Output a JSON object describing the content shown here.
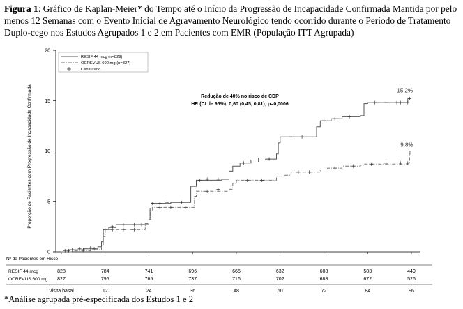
{
  "caption": {
    "label": "Figura 1",
    "text": ": Gráfico de Kaplan-Meier* do Tempo até o Início da Progressão de Incapacidade Confirmada Mantida por pelo menos 12 Semanas com o Evento Inicial de Agravamento Neurológico tendo ocorrido durante o Período de Tratamento Duplo-cego nos Estudos Agrupados 1 e 2 em Pacientes com EMR (População ITT Agrupada)"
  },
  "footnote": "*Análise agrupada pré-especificada dos Estudos 1 e 2",
  "chart_data": {
    "type": "line",
    "ylabel": "Proporção de Pacientes com Progressão de Incapacidade Confirmada",
    "ylim": [
      0,
      20
    ],
    "yticks": [
      "0",
      "5",
      "10",
      "15",
      "20"
    ],
    "xlim": [
      0,
      96
    ],
    "xticks": [
      {
        "value": 0,
        "label": "Visita basal"
      },
      {
        "value": 12,
        "label": "12"
      },
      {
        "value": 24,
        "label": "24"
      },
      {
        "value": 36,
        "label": "36"
      },
      {
        "value": 48,
        "label": "48"
      },
      {
        "value": 60,
        "label": "60"
      },
      {
        "value": 72,
        "label": "72"
      },
      {
        "value": 84,
        "label": "84"
      },
      {
        "value": 96,
        "label": "96"
      }
    ],
    "legend": {
      "placement": "top-left",
      "censored_label": "Censurado"
    },
    "annotation": {
      "line1": "Redução de 40% no risco de CDP",
      "line2": "HR (CI de 95%): 0,60 (0,45, 0,81); p=0,0006"
    },
    "series": [
      {
        "name": "RESIF 44 mcg (n=829)",
        "color": "#555555",
        "style": "solid",
        "end_label": "15.2%",
        "end_value": 15.2,
        "points": [
          [
            0,
            0
          ],
          [
            2,
            0.2
          ],
          [
            6,
            0.3
          ],
          [
            10,
            0.5
          ],
          [
            11,
            1.0
          ],
          [
            11.5,
            2.2
          ],
          [
            13,
            2.4
          ],
          [
            15,
            2.7
          ],
          [
            23,
            2.7
          ],
          [
            24,
            3.2
          ],
          [
            24.3,
            4.3
          ],
          [
            24.6,
            4.8
          ],
          [
            30,
            4.9
          ],
          [
            35,
            4.9
          ],
          [
            35.5,
            6.5
          ],
          [
            37,
            7.1
          ],
          [
            44,
            7.2
          ],
          [
            46,
            8.0
          ],
          [
            47,
            8.5
          ],
          [
            49,
            8.8
          ],
          [
            52,
            9.1
          ],
          [
            56,
            9.2
          ],
          [
            59,
            9.7
          ],
          [
            59.5,
            10.8
          ],
          [
            60,
            11.4
          ],
          [
            69,
            11.4
          ],
          [
            70,
            12.4
          ],
          [
            71,
            13.0
          ],
          [
            74,
            13.2
          ],
          [
            77,
            13.4
          ],
          [
            82,
            13.5
          ],
          [
            83,
            14.7
          ],
          [
            84,
            14.8
          ],
          [
            94,
            14.8
          ],
          [
            95,
            15.2
          ]
        ],
        "censor_points": [
          [
            1,
            0.1
          ],
          [
            3,
            0.2
          ],
          [
            5,
            0.3
          ],
          [
            8,
            0.4
          ],
          [
            12,
            2.2
          ],
          [
            14,
            2.5
          ],
          [
            17,
            2.7
          ],
          [
            20,
            2.7
          ],
          [
            22,
            2.7
          ],
          [
            25,
            4.8
          ],
          [
            27,
            4.8
          ],
          [
            29,
            4.9
          ],
          [
            33,
            4.9
          ],
          [
            38,
            7.1
          ],
          [
            40,
            7.2
          ],
          [
            43,
            7.2
          ],
          [
            50,
            8.8
          ],
          [
            54,
            9.1
          ],
          [
            57,
            9.2
          ],
          [
            63,
            11.4
          ],
          [
            66,
            11.4
          ],
          [
            72,
            13.0
          ],
          [
            75,
            13.2
          ],
          [
            79,
            13.4
          ],
          [
            86,
            14.8
          ],
          [
            89,
            14.8
          ],
          [
            92,
            14.8
          ],
          [
            93,
            14.8
          ],
          [
            94,
            14.8
          ],
          [
            95,
            14.8
          ],
          [
            95.5,
            15.2
          ]
        ]
      },
      {
        "name": "OCREVUS 600 mg (n=827)",
        "color": "#777777",
        "style": "dashdot",
        "end_label": "9.8%",
        "end_value": 9.8,
        "points": [
          [
            0,
            0
          ],
          [
            3,
            0.1
          ],
          [
            8,
            0.2
          ],
          [
            11,
            0.6
          ],
          [
            11.5,
            1.5
          ],
          [
            12,
            2.2
          ],
          [
            22,
            2.2
          ],
          [
            23,
            2.8
          ],
          [
            24,
            3.2
          ],
          [
            24.5,
            4.1
          ],
          [
            25,
            4.4
          ],
          [
            32,
            4.4
          ],
          [
            36,
            4.4
          ],
          [
            36.5,
            5.5
          ],
          [
            37,
            6.0
          ],
          [
            46,
            6.2
          ],
          [
            47,
            6.8
          ],
          [
            48,
            7.1
          ],
          [
            58,
            7.1
          ],
          [
            59,
            7.5
          ],
          [
            61,
            7.6
          ],
          [
            63,
            7.9
          ],
          [
            70,
            7.9
          ],
          [
            71,
            8.2
          ],
          [
            73,
            8.3
          ],
          [
            77,
            8.5
          ],
          [
            82,
            8.6
          ],
          [
            83,
            8.7
          ],
          [
            95,
            8.8
          ],
          [
            95.5,
            9.8
          ]
        ],
        "censor_points": [
          [
            2,
            0.1
          ],
          [
            6,
            0.2
          ],
          [
            9,
            0.3
          ],
          [
            14,
            2.2
          ],
          [
            17,
            2.2
          ],
          [
            20,
            2.2
          ],
          [
            27,
            4.4
          ],
          [
            30,
            4.4
          ],
          [
            34,
            4.4
          ],
          [
            40,
            6.0
          ],
          [
            43,
            6.2
          ],
          [
            51,
            7.1
          ],
          [
            55,
            7.1
          ],
          [
            65,
            7.9
          ],
          [
            68,
            7.9
          ],
          [
            75,
            8.3
          ],
          [
            80,
            8.5
          ],
          [
            85,
            8.7
          ],
          [
            89,
            8.8
          ],
          [
            93,
            8.8
          ],
          [
            95,
            8.8
          ],
          [
            95.6,
            9.8
          ]
        ]
      }
    ],
    "risk_table": {
      "title": "Nº de Pacientes em Risco",
      "rows": [
        {
          "label": "RESIF 44 mcg",
          "values": [
            "828",
            "784",
            "741",
            "696",
            "665",
            "632",
            "608",
            "583",
            "449"
          ]
        },
        {
          "label": "OCREVUS 600 mg",
          "values": [
            "827",
            "795",
            "765",
            "737",
            "716",
            "702",
            "688",
            "672",
            "526"
          ]
        }
      ]
    }
  }
}
